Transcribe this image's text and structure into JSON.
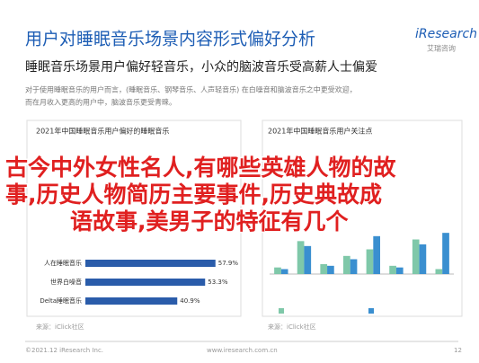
{
  "header": {
    "title": "用户对睡眠音乐场景内容形式偏好分析",
    "subtitle": "睡眠音乐场景用户偏好轻音乐，小众的脑波音乐受高薪人士偏爱",
    "logo": "iResearch",
    "logo_sub": "艾瑞咨询"
  },
  "paragraph": [
    "对于使用睡眠音乐的用户而言，(睡眠音乐、钢琴音乐、人声轻音乐) 在白噪音和脑波音乐之中更受欢迎，",
    "而在月收入更高的用户中，脑波音乐更受青睐。"
  ],
  "left_chart": {
    "title": "2021年中国睡眠音乐用户偏好的睡眠音乐",
    "categories": [
      "人在睡眠音乐",
      "世界白噪音",
      "Delta睡眠音乐"
    ],
    "values": [
      57.9,
      53.3,
      40.9
    ],
    "value_labels": [
      "57.9%",
      "53.3%",
      "40.9%"
    ],
    "color": "#2a5caa",
    "xlim": [
      0,
      70
    ],
    "source": "来源：iClick社区"
  },
  "right_chart": {
    "title": "2021年中国睡眠音乐用户关注点",
    "categories": [
      null,
      null,
      null,
      null,
      null,
      null,
      null,
      null
    ],
    "ylim": [
      0,
      60
    ],
    "series": [
      {
        "color": "#7fc8a9",
        "values": [
          8,
          40,
          12,
          22,
          30,
          10,
          42,
          6
        ]
      },
      {
        "color": "#3a8fd0",
        "values": [
          6,
          34,
          10,
          18,
          46,
          8,
          36,
          50
        ]
      }
    ],
    "source": "来源：iClick社区"
  },
  "overlay": [
    "古今中外女性名人,有哪些英雄人物的故",
    "事,历史人物简历主要事件,历史典故成",
    "语故事,美男子的特征有几个"
  ],
  "footer": {
    "left": "©2021.12 iResearch Inc.",
    "center": "www.iresearch.com.cn",
    "page": "12"
  }
}
